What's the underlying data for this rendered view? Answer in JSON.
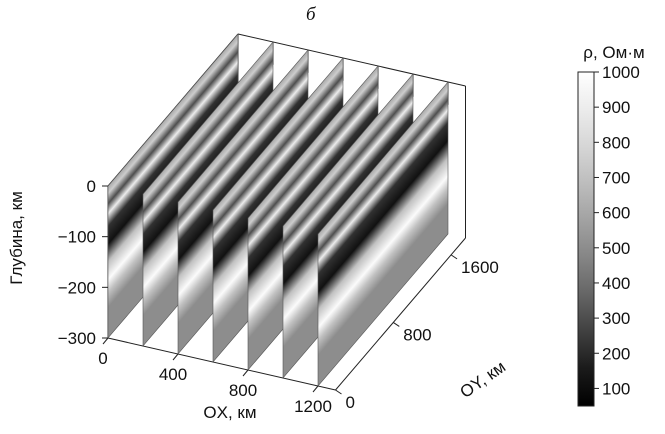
{
  "subfigure_label": "б",
  "chart_data": {
    "type": "heatmap",
    "subtype": "3d-fence-slices",
    "title": "",
    "xlabel": "OX, км",
    "ylabel": "OY, км",
    "zlabel": "Глубина, км",
    "x_ticks": [
      "0",
      "400",
      "800",
      "1200"
    ],
    "y_ticks": [
      "0",
      "800",
      "1600"
    ],
    "z_ticks": [
      "0",
      "−100",
      "−200",
      "−300"
    ],
    "xlim": [
      0,
      1300
    ],
    "ylim": [
      0,
      1800
    ],
    "zlim": [
      -300,
      0
    ],
    "colorbar": {
      "label": "ρ, Ом·м",
      "ticks": [
        "1000",
        "900",
        "800",
        "700",
        "600",
        "500",
        "400",
        "300",
        "200",
        "100"
      ],
      "range": [
        50,
        1000
      ],
      "colors": [
        "#000000",
        "#1a1a1a",
        "#404040",
        "#656565",
        "#858585",
        "#a2a2a2",
        "#bdbdbd",
        "#d6d6d6",
        "#ececec",
        "#ffffff"
      ]
    },
    "slices_x_km": [
      0,
      200,
      400,
      600,
      800,
      1000,
      1200
    ],
    "depth_profile": [
      {
        "depth": 0,
        "rho": 600
      },
      {
        "depth": -15,
        "rho": 750
      },
      {
        "depth": -35,
        "rho": 300
      },
      {
        "depth": -55,
        "rho": 900
      },
      {
        "depth": -80,
        "rho": 220
      },
      {
        "depth": -115,
        "rho": 120
      },
      {
        "depth": -150,
        "rho": 700
      },
      {
        "depth": -185,
        "rho": 980
      },
      {
        "depth": -210,
        "rho": 700
      },
      {
        "depth": -240,
        "rho": 500
      },
      {
        "depth": -300,
        "rho": 500
      }
    ],
    "grid": true
  }
}
